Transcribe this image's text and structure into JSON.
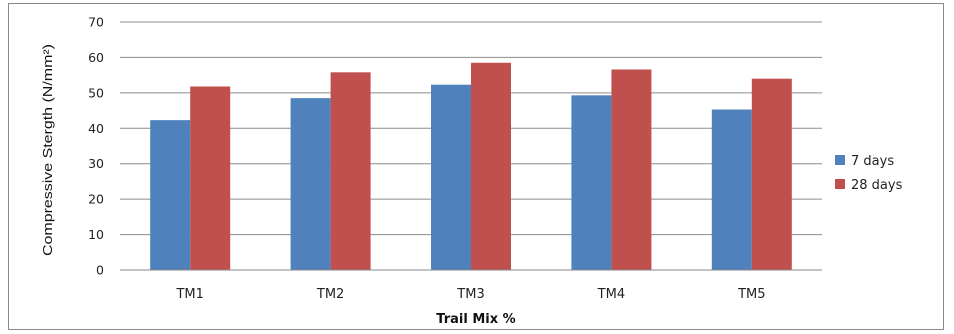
{
  "chart_data": {
    "type": "bar",
    "title": "",
    "xlabel": "Trail Mix %",
    "ylabel": "Compressive Stergth (N/mm²)",
    "categories": [
      "TM1",
      "TM2",
      "TM3",
      "TM4",
      "TM5"
    ],
    "series": [
      {
        "name": "7 days",
        "color": "#4f81bd",
        "values": [
          42.3,
          48.5,
          52.3,
          49.3,
          45.3
        ]
      },
      {
        "name": "28 days",
        "color": "#c0504d",
        "values": [
          51.8,
          55.8,
          58.5,
          56.6,
          54.0
        ]
      }
    ],
    "ylim": [
      0,
      70
    ],
    "yticks": [
      "0",
      "10",
      "20",
      "30",
      "40",
      "50",
      "60",
      "70"
    ],
    "grid": true,
    "legend_position": "right"
  }
}
